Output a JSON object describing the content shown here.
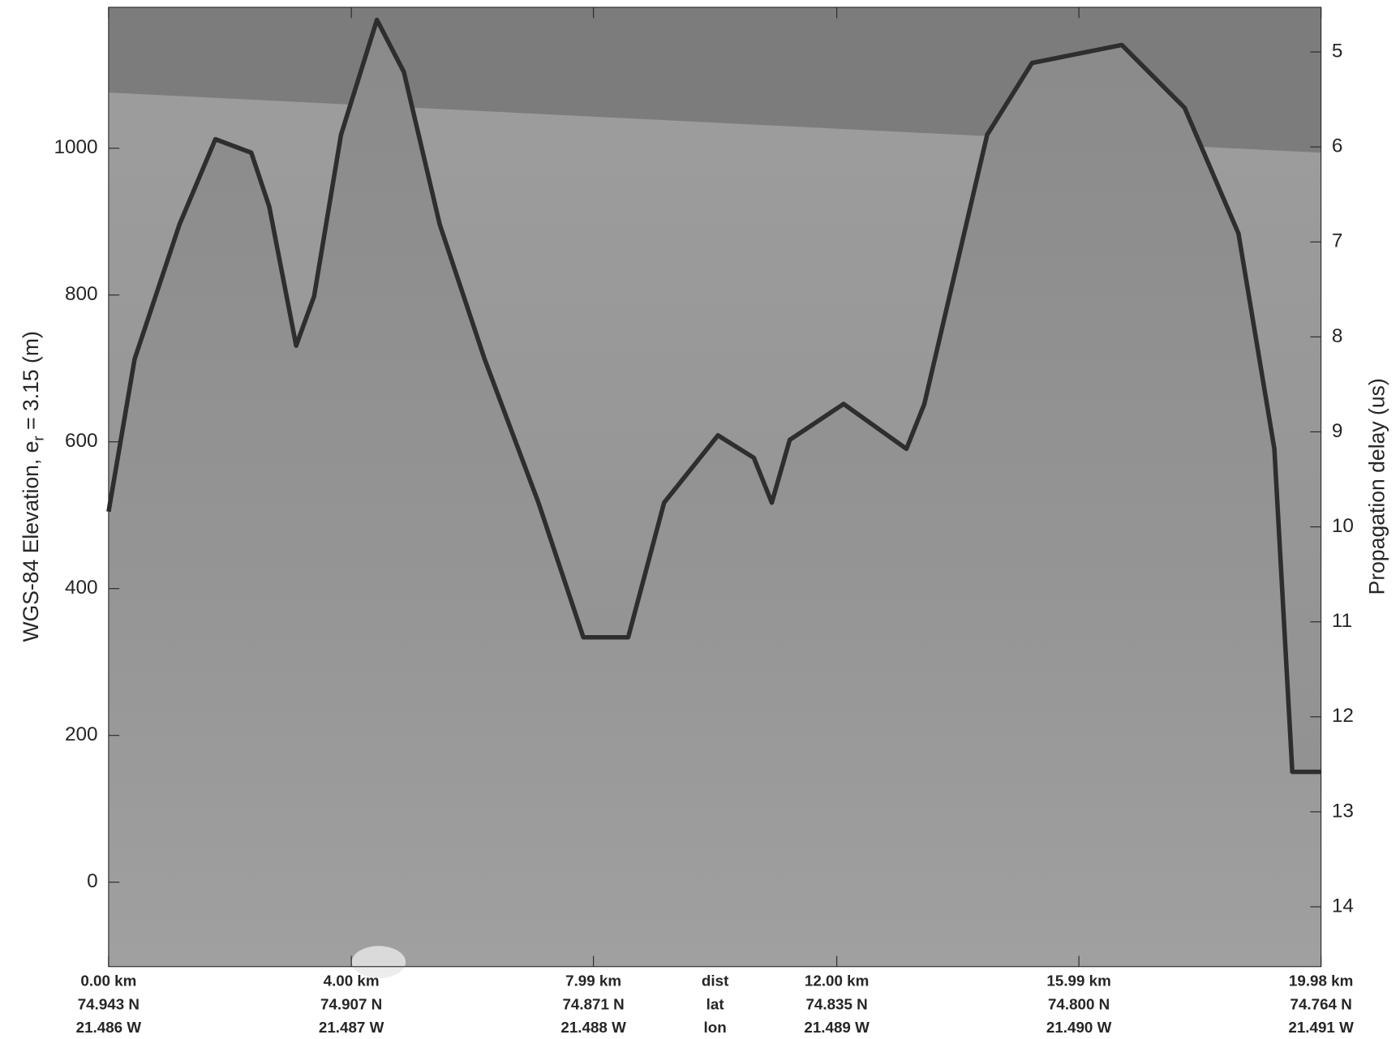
{
  "chart_data": {
    "type": "echogram",
    "ylabel": [
      "WGS-84 Elevation, e",
      "r",
      " = 3.15 (m)"
    ],
    "y2label": "Propagation delay (us)",
    "xlim": [
      0,
      19.98
    ],
    "xticks": [
      {
        "value": 0,
        "label": "0.00 km"
      },
      {
        "value": 4.0,
        "label": "4.00 km"
      },
      {
        "value": 7.99,
        "label": "7.99 km"
      },
      {
        "value": 12.0,
        "label": "12.00 km"
      },
      {
        "value": 15.99,
        "label": "15.99 km"
      },
      {
        "value": 19.98,
        "label": "19.98 km"
      }
    ],
    "row_names": [
      "dist",
      "lat",
      "lon"
    ],
    "lat_labels": [
      "74.943 N",
      "74.907 N",
      "74.871 N",
      "74.835 N",
      "74.800 N",
      "74.764 N"
    ],
    "lon_labels": [
      "21.486 W",
      "21.487 W",
      "21.488 W",
      "21.489 W",
      "21.490 W",
      "21.491 W"
    ],
    "ylim": [
      -115,
      1192
    ],
    "yticks": [
      0,
      200,
      400,
      600,
      800,
      1000
    ],
    "y2lim": [
      14.63,
      4.53
    ],
    "y2ticks": [
      5,
      6,
      7,
      8,
      9,
      10,
      11,
      12,
      13,
      14
    ]
  }
}
